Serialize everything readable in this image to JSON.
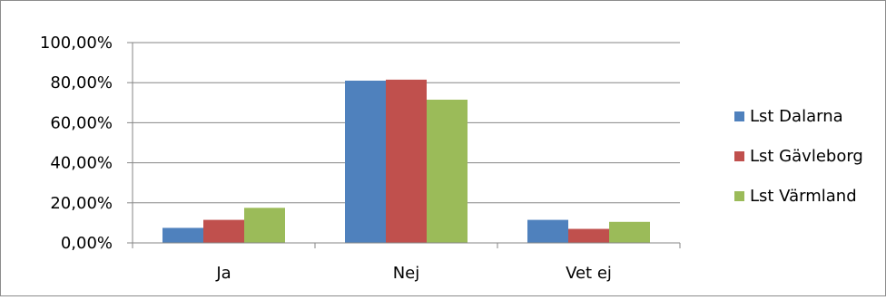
{
  "chart_data": {
    "type": "bar",
    "title": "",
    "xlabel": "",
    "ylabel": "",
    "categories": [
      "Ja",
      "Nej",
      "Vet ej"
    ],
    "series": [
      {
        "name": "Lst Dalarna",
        "color": "#4f81bd",
        "values": [
          7.5,
          81.0,
          11.5
        ]
      },
      {
        "name": "Lst Gävleborg",
        "color": "#c0504d",
        "values": [
          11.5,
          81.5,
          7.0
        ]
      },
      {
        "name": "Lst Värmland",
        "color": "#9bbb59",
        "values": [
          17.5,
          71.5,
          10.5
        ]
      }
    ],
    "ylim": [
      0,
      100
    ],
    "y_ticks": [
      "0,00%",
      "20,00%",
      "40,00%",
      "60,00%",
      "80,00%",
      "100,00%"
    ],
    "y_tick_values": [
      0,
      20,
      40,
      60,
      80,
      100
    ],
    "grid": "horizontal",
    "legend": "right"
  }
}
